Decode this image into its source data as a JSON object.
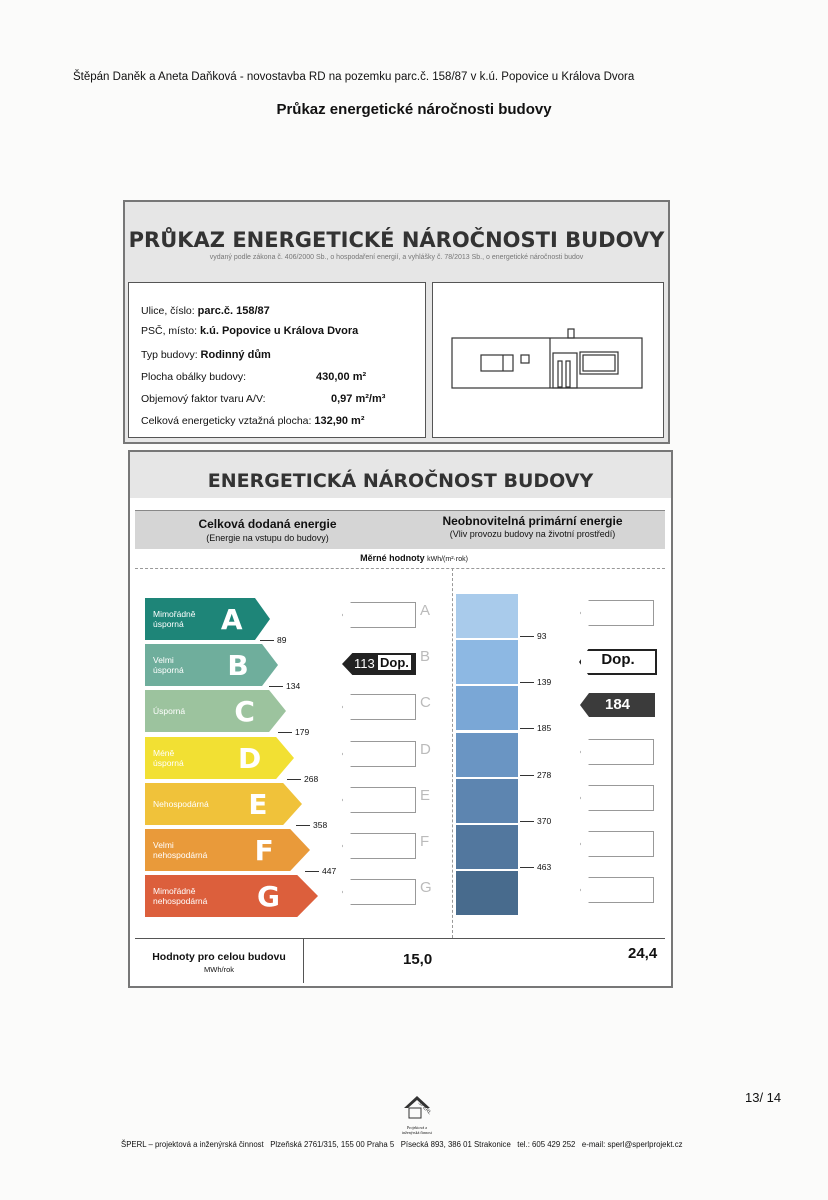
{
  "header": {
    "line": "Štěpán Daněk a Aneta Daňková - novostavba RD na pozemku parc.č. 158/87 v k.ú. Popovice u Králova Dvora",
    "title": "Průkaz energetické náročnosti budovy"
  },
  "card": {
    "title": "PRŮKAZ ENERGETICKÉ NÁROČNOSTI BUDOVY",
    "subtitle": "vydaný podle zákona č. 406/2000 Sb., o hospodaření energií, a vyhlášky č. 78/2013 Sb., o energetické náročnosti budov",
    "info": [
      {
        "label": "Ulice, číslo:",
        "value": "parc.č. 158/87"
      },
      {
        "label": "PSČ, místo:",
        "value": "k.ú. Popovice u Králova Dvora"
      },
      {
        "label": "Typ budovy:",
        "value": "Rodinný dům"
      },
      {
        "label": "Plocha obálky budovy:",
        "value": "430,00 m²"
      },
      {
        "label": "Objemový faktor tvaru A/V:",
        "value": "0,97 m²/m³"
      },
      {
        "label": "Celková energeticky vztažná plocha:",
        "value": "132,90 m²"
      }
    ]
  },
  "energy": {
    "title": "ENERGETICKÁ NÁROČNOST BUDOVY",
    "left_head": "Celková dodaná energie",
    "left_sub": "(Energie na vstupu do budovy)",
    "right_head": "Neobnovitelná primární energie",
    "right_sub": "(Vliv provozu budovy na životní prostředí)",
    "unit_label": "Měrné hodnoty",
    "unit": "kWh/(m²·rok)",
    "classes": [
      {
        "letter": "A",
        "label": "Mimořádně úsporná",
        "color": "#1e8578"
      },
      {
        "letter": "B",
        "label": "Velmi úsporná",
        "color": "#6fae9c"
      },
      {
        "letter": "C",
        "label": "Úsporná",
        "color": "#9cc39e"
      },
      {
        "letter": "D",
        "label": "Méně úsporná",
        "color": "#f2e033"
      },
      {
        "letter": "E",
        "label": "Nehospodárná",
        "color": "#f0c23a"
      },
      {
        "letter": "F",
        "label": "Velmi nehospodárná",
        "color": "#e99a3a"
      },
      {
        "letter": "G",
        "label": "Mimořádně nehospodárná",
        "color": "#dc5f3c"
      }
    ],
    "left_thresholds": [
      "89",
      "134",
      "179",
      "268",
      "358",
      "447"
    ],
    "right_thresholds": [
      "93",
      "139",
      "185",
      "278",
      "370",
      "463"
    ],
    "blue_colors": [
      "#a9cbeb",
      "#8db8e3",
      "#7aa7d6",
      "#6a95c3",
      "#5d85b0",
      "#52779e",
      "#486b8d"
    ],
    "left_value": "113",
    "left_ref": "Dop.",
    "left_class": "B",
    "right_value": "184",
    "right_ref": "Dop.",
    "right_ref_class": "B",
    "right_class": "C",
    "total_label": "Hodnoty pro celou budovu",
    "total_unit": "MWh/rok",
    "total_left": "15,0",
    "total_right": "24,4"
  },
  "footer": {
    "page": "13/ 14",
    "logo_text": "Projektová a inženýrská činnost",
    "text": "ŠPERL – projektová a inženýrská činnost   Plzeňská 2761/315, 155 00 Praha 5   Písecká 893, 386 01 Strakonice   tel.: 605 429 252   e-mail: sperl@sperlprojekt.cz"
  }
}
